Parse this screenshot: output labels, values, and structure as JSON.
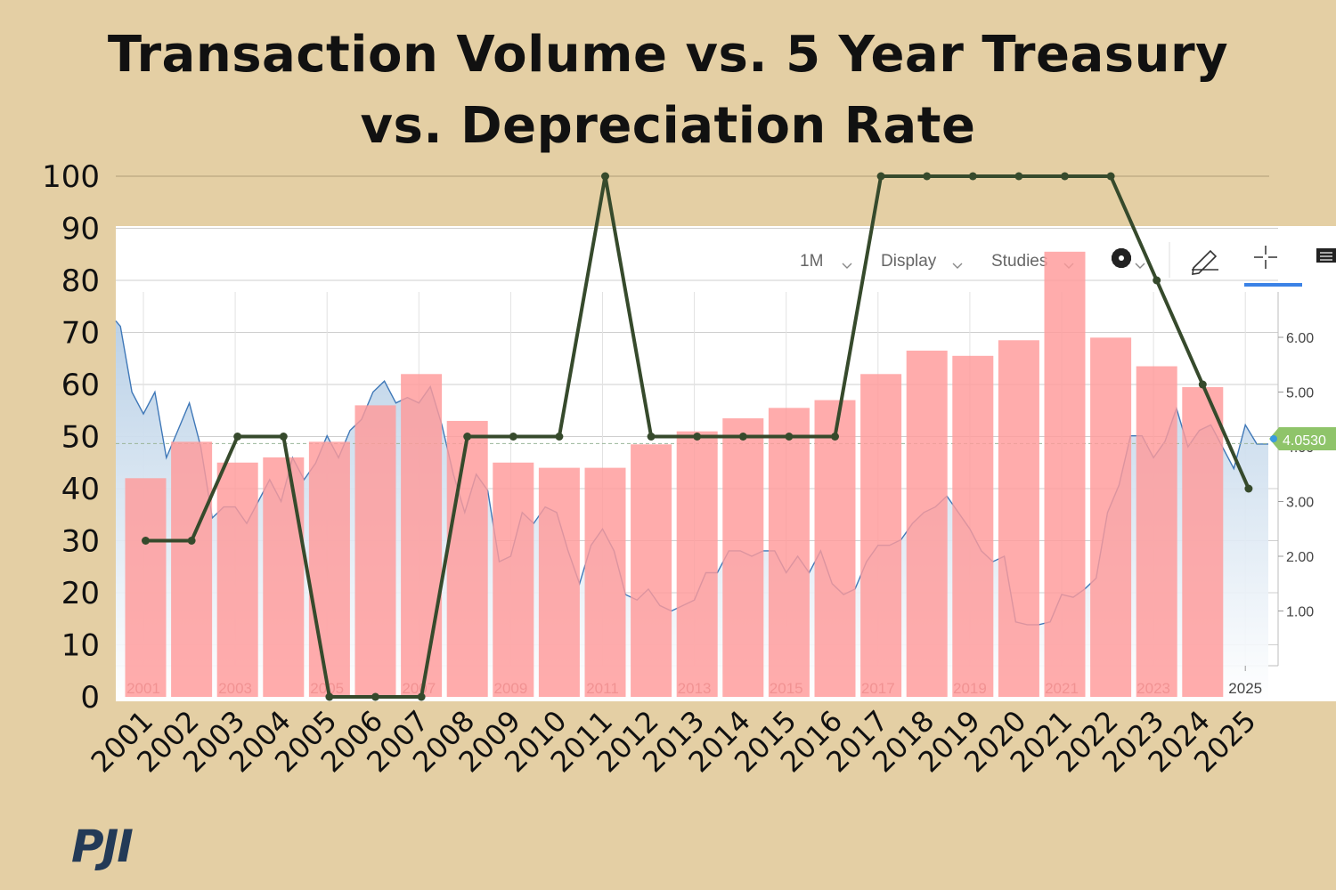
{
  "title_line1": "Transaction Volume vs. 5 Year Treasury",
  "title_line2": "vs. Depreciation Rate",
  "logo_text": "PJI",
  "toolbar": {
    "period_label": "1M",
    "display_label": "Display",
    "studies_label": "Studies",
    "settings_icon": "gear-icon",
    "draw_icon": "pencil-icon",
    "crosshair_icon": "crosshair-icon",
    "menu_icon": "list-icon"
  },
  "current_value_label": "4.0530",
  "colors": {
    "background": "#e4cfa4",
    "bars": "#ff9a9a",
    "depreciation_line": "#364a2c",
    "treasury_line": "#3f78b8",
    "treasury_fill": "#b7cfe6",
    "current_value_badge": "#8fc46a",
    "accent_underline": "#3b82e6"
  },
  "chart_data": [
    {
      "type": "line",
      "name": "Depreciation Rate",
      "x": [
        "2001",
        "2002",
        "2003",
        "2004",
        "2005",
        "2006",
        "2007",
        "2008",
        "2009",
        "2010",
        "2011",
        "2012",
        "2013",
        "2014",
        "2015",
        "2016",
        "2017",
        "2018",
        "2019",
        "2020",
        "2021",
        "2022",
        "2023",
        "2024",
        "2025"
      ],
      "values": [
        30,
        30,
        50,
        50,
        0,
        0,
        0,
        50,
        50,
        50,
        100,
        50,
        50,
        50,
        50,
        50,
        100,
        100,
        100,
        100,
        100,
        100,
        80,
        60,
        40
      ],
      "ylim": [
        0,
        100
      ],
      "yticks": [
        0,
        10,
        20,
        30,
        40,
        50,
        60,
        70,
        80,
        90,
        100
      ],
      "xticks": [
        "2001",
        "2002",
        "2003",
        "2004",
        "2005",
        "2006",
        "2007",
        "2008",
        "2009",
        "2010",
        "2011",
        "2012",
        "2013",
        "2014",
        "2015",
        "2016",
        "2017",
        "2018",
        "2019",
        "2020",
        "2021",
        "2022",
        "2023",
        "2024",
        "2025"
      ],
      "grid": true
    },
    {
      "type": "bar",
      "name": "Transaction Volume",
      "categories": [
        "2001",
        "2002",
        "2003",
        "2004",
        "2005",
        "2006",
        "2007",
        "2008",
        "2009",
        "2010",
        "2011",
        "2012",
        "2013",
        "2014",
        "2015",
        "2016",
        "2017",
        "2018",
        "2019",
        "2020",
        "2021",
        "2022",
        "2023",
        "2024"
      ],
      "values": [
        42,
        49,
        45,
        46,
        49,
        56,
        62,
        53,
        45,
        44,
        44,
        48.5,
        51,
        53.5,
        55.5,
        57,
        62,
        66.5,
        65.5,
        68.5,
        85.5,
        69,
        63.5,
        59.5
      ],
      "ylim": [
        0,
        100
      ]
    },
    {
      "type": "area",
      "name": "5 Year Treasury",
      "x": [
        2000.25,
        2000.5,
        2000.75,
        2001,
        2001.25,
        2001.5,
        2001.75,
        2002,
        2002.25,
        2002.5,
        2002.75,
        2003,
        2003.25,
        2003.5,
        2003.75,
        2004,
        2004.25,
        2004.5,
        2004.75,
        2005,
        2005.25,
        2005.5,
        2005.75,
        2006,
        2006.25,
        2006.5,
        2006.75,
        2007,
        2007.25,
        2007.5,
        2007.75,
        2008,
        2008.25,
        2008.5,
        2008.75,
        2009,
        2009.25,
        2009.5,
        2009.75,
        2010,
        2010.25,
        2010.5,
        2010.75,
        2011,
        2011.25,
        2011.5,
        2011.75,
        2012,
        2012.25,
        2012.5,
        2012.75,
        2013,
        2013.25,
        2013.5,
        2013.75,
        2014,
        2014.25,
        2014.5,
        2014.75,
        2015,
        2015.25,
        2015.5,
        2015.75,
        2016,
        2016.25,
        2016.5,
        2016.75,
        2017,
        2017.25,
        2017.5,
        2017.75,
        2018,
        2018.25,
        2018.5,
        2018.75,
        2019,
        2019.25,
        2019.5,
        2019.75,
        2020,
        2020.25,
        2020.5,
        2020.75,
        2021,
        2021.25,
        2021.5,
        2021.75,
        2022,
        2022.25,
        2022.5,
        2022.75,
        2023,
        2023.25,
        2023.5,
        2023.75,
        2024,
        2024.25,
        2024.5,
        2024.75,
        2025,
        2025.25,
        2025.5
      ],
      "values": [
        6.3,
        6.2,
        5.0,
        4.6,
        5.0,
        3.8,
        4.3,
        4.8,
        4.0,
        2.7,
        2.9,
        2.9,
        2.6,
        3.0,
        3.4,
        3.0,
        3.8,
        3.4,
        3.7,
        4.2,
        3.8,
        4.3,
        4.5,
        5.0,
        5.2,
        4.8,
        4.9,
        4.8,
        5.1,
        4.4,
        3.5,
        2.8,
        3.5,
        3.2,
        1.9,
        2.0,
        2.8,
        2.6,
        2.9,
        2.8,
        2.1,
        1.5,
        2.2,
        2.5,
        2.1,
        1.3,
        1.2,
        1.4,
        1.1,
        1.0,
        1.1,
        1.2,
        1.7,
        1.7,
        2.1,
        2.1,
        2.0,
        2.1,
        2.1,
        1.7,
        2.0,
        1.7,
        2.1,
        1.5,
        1.3,
        1.4,
        1.9,
        2.2,
        2.2,
        2.3,
        2.6,
        2.8,
        2.9,
        3.1,
        2.8,
        2.5,
        2.1,
        1.9,
        2.0,
        0.8,
        0.75,
        0.75,
        0.8,
        1.3,
        1.25,
        1.4,
        1.6,
        2.8,
        3.3,
        4.2,
        4.2,
        3.8,
        4.1,
        4.7,
        4.0,
        4.3,
        4.4,
        4.0,
        3.6,
        4.4,
        4.05,
        4.05
      ],
      "ylim": [
        0,
        7
      ],
      "yticks": [
        1.0,
        2.0,
        3.0,
        4.0,
        5.0,
        6.0
      ],
      "ytick_labels": [
        "1.00",
        "2.00",
        "3.00",
        "4.00",
        "5.00",
        "6.00"
      ],
      "xticks": [
        "2001",
        "2003",
        "2005",
        "2007",
        "2009",
        "2011",
        "2013",
        "2015",
        "2017",
        "2019",
        "2021",
        "2023",
        "2025"
      ]
    }
  ]
}
